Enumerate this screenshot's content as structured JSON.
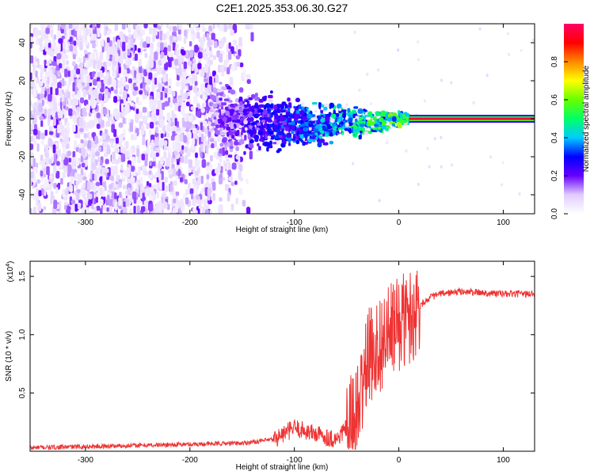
{
  "title": "C2E1.2025.353.06.30.G27",
  "chart_data": [
    {
      "type": "heatmap",
      "name": "spectrogram",
      "xlabel": "Height of straight line (km)",
      "ylabel": "Frequency (Hz)",
      "xlim": [
        -353,
        130
      ],
      "ylim": [
        -50,
        50
      ],
      "x_ticks": [
        -300,
        -200,
        -100,
        0,
        100
      ],
      "x_tick_labels": [
        "-300",
        "-200",
        "-100",
        "0",
        "100"
      ],
      "y_ticks": [
        -40,
        -20,
        0,
        20,
        40
      ],
      "y_tick_labels": [
        "-40",
        "-20",
        "0",
        "20",
        "40"
      ],
      "colorbar": {
        "label": "Normalized spectral amplitude",
        "range": [
          0,
          1
        ],
        "ticks": [
          0.0,
          0.2,
          0.4,
          0.6,
          0.8
        ],
        "tick_labels": [
          "0.0",
          "0.2",
          "0.4",
          "0.6",
          "0.8"
        ],
        "colormap_stops": [
          "#ffffff",
          "#e0ccff",
          "#6600ff",
          "#0000ff",
          "#00ccff",
          "#00ff66",
          "#66ff00",
          "#ffff00",
          "#ff8800",
          "#ff0000",
          "#ff0066"
        ]
      },
      "features": {
        "noise_region_km": [
          -353,
          -140
        ],
        "transition_region_km": [
          -180,
          10
        ],
        "tone_start_km": 10,
        "tone_frequency_hz": 0,
        "tone_amplitude": 0.95
      }
    },
    {
      "type": "line",
      "name": "snr",
      "xlabel": "Height of straight line (km)",
      "ylabel": "SNR (10 * v/v)",
      "y_multiplier_label": "(x10",
      "y_multiplier_exp": "4",
      "y_multiplier_close": ")",
      "xlim": [
        -353,
        130
      ],
      "ylim": [
        0,
        1.63
      ],
      "x_ticks": [
        -300,
        -200,
        -100,
        0,
        100
      ],
      "x_tick_labels": [
        "-300",
        "-200",
        "-100",
        "0",
        "100"
      ],
      "y_ticks": [
        0.5,
        1.0,
        1.5
      ],
      "y_tick_labels": [
        "0.5",
        "1.0",
        "1.5"
      ],
      "color": "#ee3333",
      "series": [
        {
          "name": "SNR (x10^4)",
          "x": [
            -353,
            -300,
            -250,
            -200,
            -150,
            -120,
            -100,
            -80,
            -60,
            -40,
            -30,
            -20,
            -10,
            0,
            10,
            20,
            30,
            40,
            60,
            80,
            100,
            130
          ],
          "y": [
            0.03,
            0.04,
            0.05,
            0.06,
            0.07,
            0.1,
            0.2,
            0.15,
            0.1,
            0.3,
            0.8,
            0.9,
            1.0,
            1.1,
            1.15,
            1.25,
            1.32,
            1.35,
            1.37,
            1.36,
            1.35,
            1.35
          ]
        }
      ]
    }
  ]
}
